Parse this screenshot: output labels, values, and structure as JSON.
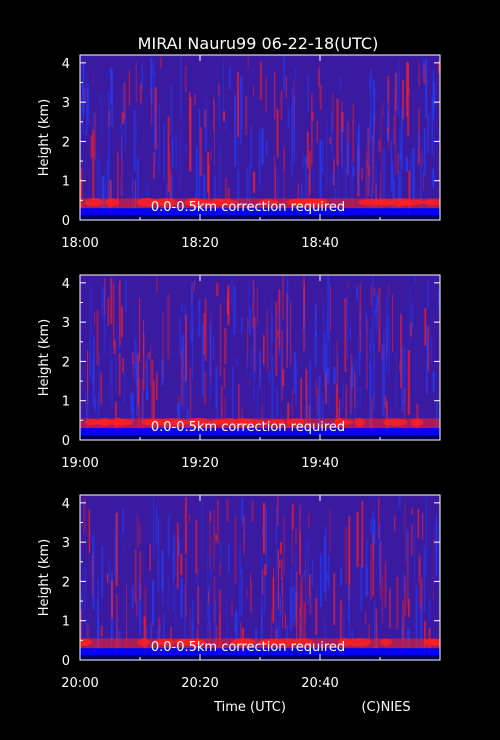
{
  "title": "MIRAI Nauru99 06-22-18(UTC)",
  "credit": "(C)NIES",
  "xlabel": "Time (UTC)",
  "colors": {
    "background": "#000000",
    "plot_base": "#3a1aa0",
    "echo_red": "#ff2020",
    "noise_blue": "#2040ff",
    "surface_blue": "#0000ff",
    "text": "#ffffff"
  },
  "chart_data": [
    {
      "type": "heatmap",
      "title": "MIRAI Nauru99 06-22-18(UTC)",
      "ylabel": "Height (km)",
      "ylim": [
        0,
        4.2
      ],
      "yticks": [
        "0",
        "1",
        "2",
        "3",
        "4"
      ],
      "xlim": [
        "18:00",
        "19:00"
      ],
      "xticks": [
        "18:00",
        "18:20",
        "18:40"
      ],
      "annotation": "0.0-0.5km correction required"
    },
    {
      "type": "heatmap",
      "ylabel": "Height (km)",
      "ylim": [
        0,
        4.2
      ],
      "yticks": [
        "0",
        "1",
        "2",
        "3",
        "4"
      ],
      "xlim": [
        "19:00",
        "20:00"
      ],
      "xticks": [
        "19:00",
        "19:20",
        "19:40"
      ],
      "annotation": "0.0-0.5km correction required"
    },
    {
      "type": "heatmap",
      "ylabel": "Height (km)",
      "xlabel": "Time (UTC)",
      "ylim": [
        0,
        4.2
      ],
      "yticks": [
        "0",
        "1",
        "2",
        "3",
        "4"
      ],
      "xlim": [
        "20:00",
        "21:00"
      ],
      "xticks": [
        "20:00",
        "20:20",
        "20:40"
      ],
      "annotation": "0.0-0.5km correction required"
    }
  ]
}
